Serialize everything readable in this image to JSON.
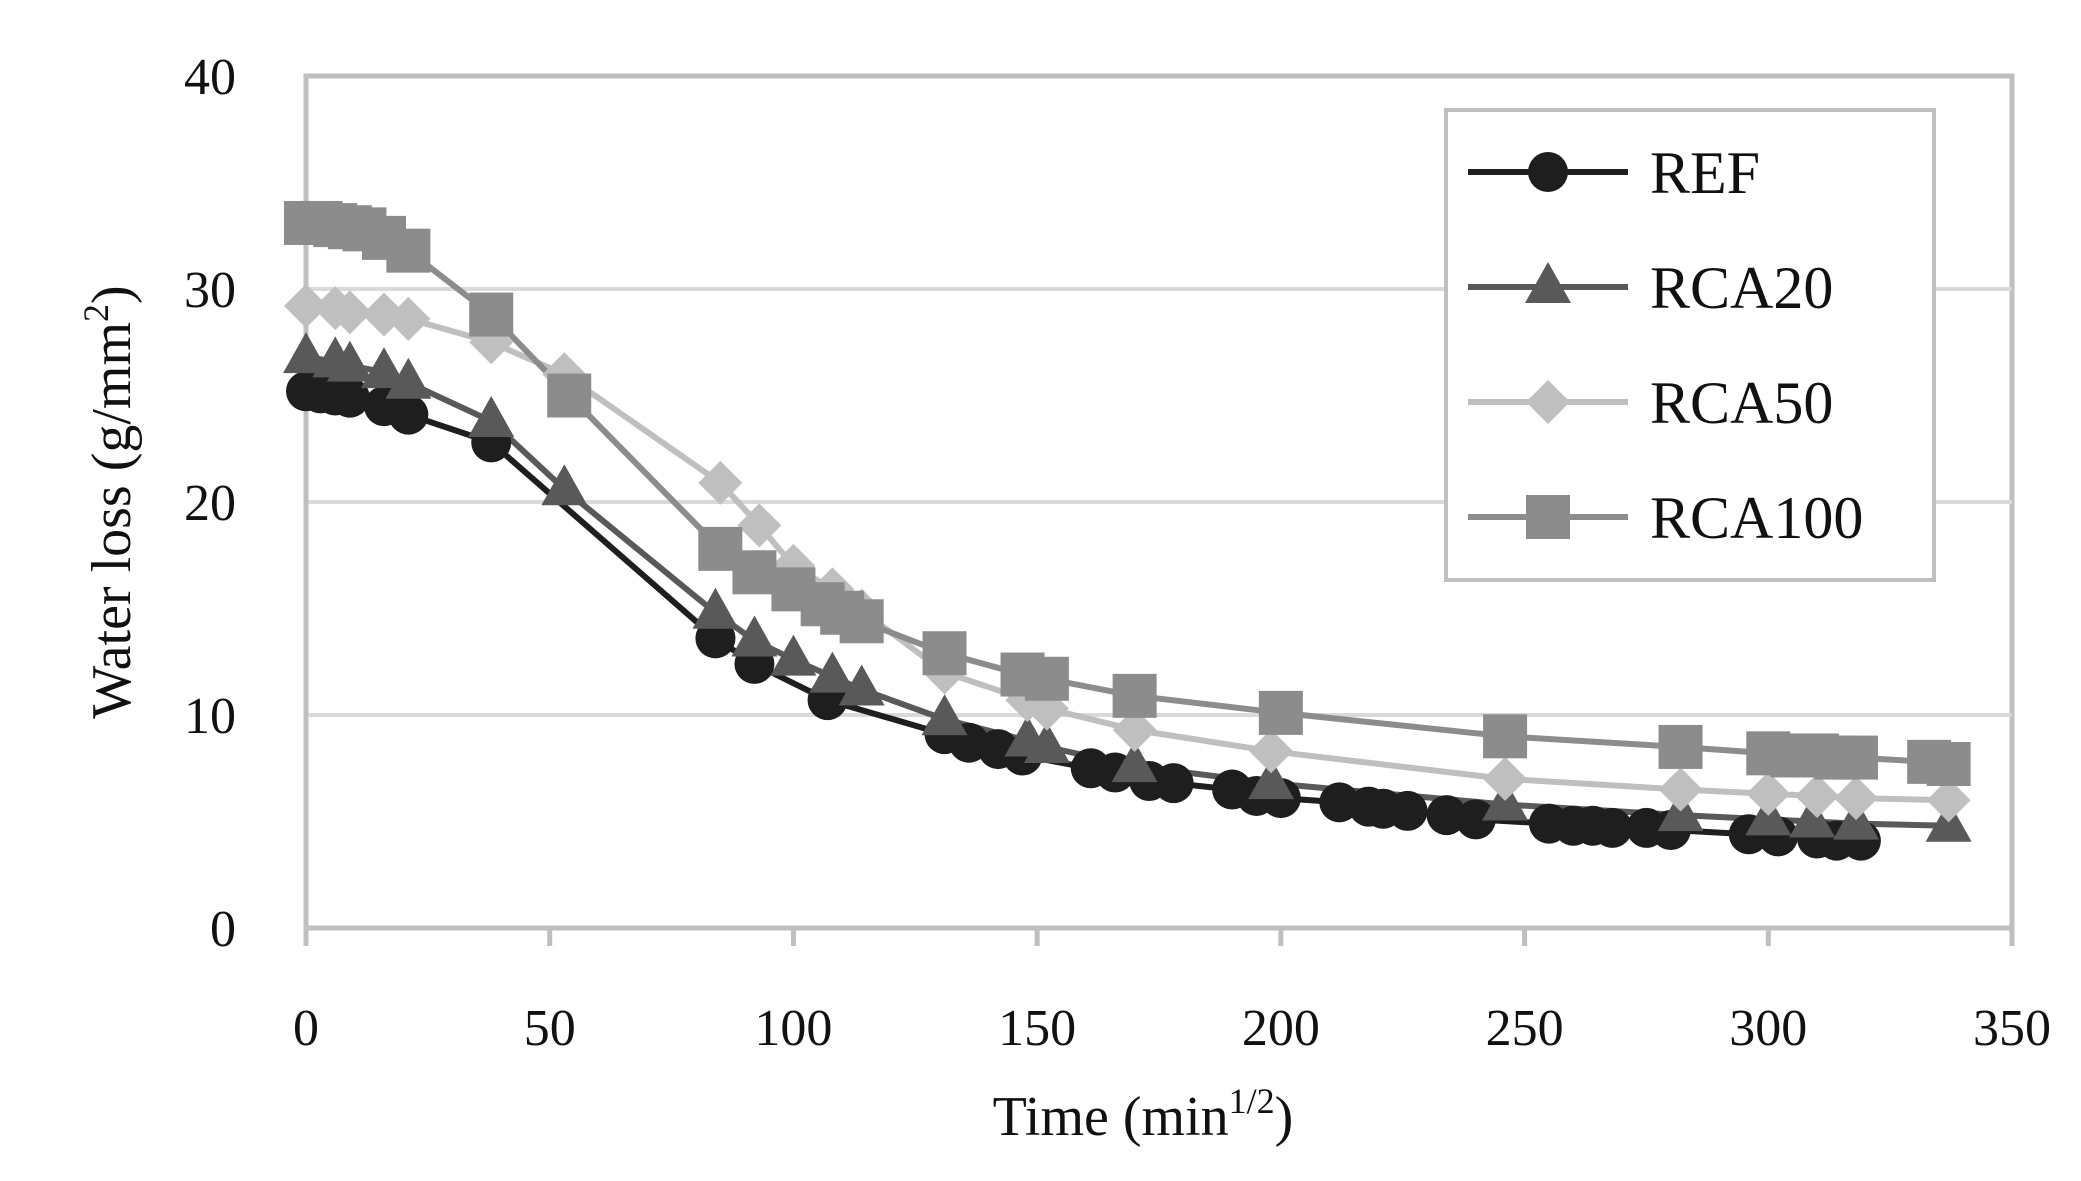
{
  "chart_data": {
    "type": "line",
    "title": "",
    "xlabel": "Time (min",
    "xlabel_sup": "1/2",
    "xlabel_close": ")",
    "ylabel": "Water loss (g/mm",
    "ylabel_sup": "2",
    "ylabel_close": ")",
    "xlim": [
      0,
      350
    ],
    "ylim": [
      0,
      40
    ],
    "xticks": [
      0,
      50,
      100,
      150,
      200,
      250,
      300,
      350
    ],
    "yticks": [
      0,
      10,
      20,
      30,
      40
    ],
    "xtick_labels": [
      "0",
      "50",
      "100",
      "150",
      "200",
      "250",
      "300",
      "350"
    ],
    "ytick_labels": [
      "0",
      "10",
      "20",
      "30",
      "40"
    ],
    "grid": "horizontal",
    "legend_position": "top-right",
    "series": [
      {
        "name": "REF",
        "color": "#1e1e1e",
        "marker": "circle",
        "points": [
          [
            0,
            25.2
          ],
          [
            3,
            25.1
          ],
          [
            6,
            25.0
          ],
          [
            9,
            24.9
          ],
          [
            16,
            24.5
          ],
          [
            21,
            24.1
          ],
          [
            38,
            22.8
          ],
          [
            84,
            13.6
          ],
          [
            92,
            12.4
          ],
          [
            107,
            10.7
          ],
          [
            131,
            9.1
          ],
          [
            136,
            8.7
          ],
          [
            142,
            8.4
          ],
          [
            147,
            8.1
          ],
          [
            161,
            7.5
          ],
          [
            166,
            7.3
          ],
          [
            173,
            6.9
          ],
          [
            178,
            6.8
          ],
          [
            190,
            6.5
          ],
          [
            195,
            6.2
          ],
          [
            200,
            6.1
          ],
          [
            212,
            5.9
          ],
          [
            218,
            5.7
          ],
          [
            221,
            5.6
          ],
          [
            226,
            5.5
          ],
          [
            234,
            5.3
          ],
          [
            240,
            5.1
          ],
          [
            255,
            4.9
          ],
          [
            260,
            4.8
          ],
          [
            264,
            4.8
          ],
          [
            268,
            4.7
          ],
          [
            275,
            4.7
          ],
          [
            280,
            4.6
          ],
          [
            296,
            4.4
          ],
          [
            302,
            4.3
          ],
          [
            310,
            4.2
          ],
          [
            314,
            4.1
          ],
          [
            319,
            4.1
          ]
        ]
      },
      {
        "name": "RCA20",
        "color": "#595959",
        "marker": "triangle",
        "points": [
          [
            0,
            26.8
          ],
          [
            6,
            26.6
          ],
          [
            9,
            26.4
          ],
          [
            16,
            26.1
          ],
          [
            21,
            25.6
          ],
          [
            38,
            23.8
          ],
          [
            53,
            20.6
          ],
          [
            84,
            14.8
          ],
          [
            92,
            13.5
          ],
          [
            100,
            12.6
          ],
          [
            108,
            11.8
          ],
          [
            114,
            11.2
          ],
          [
            131,
            9.8
          ],
          [
            148,
            8.8
          ],
          [
            152,
            8.5
          ],
          [
            170,
            7.6
          ],
          [
            198,
            6.8
          ],
          [
            246,
            5.8
          ],
          [
            282,
            5.3
          ],
          [
            300,
            5.1
          ],
          [
            309,
            5.0
          ],
          [
            318,
            4.9
          ],
          [
            337,
            4.8
          ]
        ]
      },
      {
        "name": "RCA50",
        "color": "#bfbfbf",
        "marker": "diamond",
        "points": [
          [
            0,
            29.2
          ],
          [
            6,
            29.1
          ],
          [
            9,
            28.9
          ],
          [
            16,
            28.8
          ],
          [
            21,
            28.6
          ],
          [
            38,
            27.5
          ],
          [
            53,
            26.0
          ],
          [
            85,
            20.9
          ],
          [
            93,
            18.9
          ],
          [
            100,
            17.0
          ],
          [
            108,
            15.9
          ],
          [
            114,
            14.9
          ],
          [
            131,
            12.0
          ],
          [
            148,
            10.7
          ],
          [
            152,
            10.3
          ],
          [
            170,
            9.3
          ],
          [
            198,
            8.3
          ],
          [
            246,
            7.0
          ],
          [
            282,
            6.5
          ],
          [
            300,
            6.3
          ],
          [
            310,
            6.2
          ],
          [
            318,
            6.1
          ],
          [
            337,
            6.0
          ]
        ]
      },
      {
        "name": "RCA100",
        "color": "#8c8c8c",
        "marker": "square",
        "points": [
          [
            0,
            33.1
          ],
          [
            3,
            33.1
          ],
          [
            6,
            33.0
          ],
          [
            9,
            32.9
          ],
          [
            12,
            32.8
          ],
          [
            16,
            32.4
          ],
          [
            21,
            31.8
          ],
          [
            38,
            28.8
          ],
          [
            54,
            25.0
          ],
          [
            85,
            17.8
          ],
          [
            92,
            16.7
          ],
          [
            100,
            15.9
          ],
          [
            106,
            15.2
          ],
          [
            110,
            14.8
          ],
          [
            114,
            14.4
          ],
          [
            131,
            12.9
          ],
          [
            147,
            11.9
          ],
          [
            152,
            11.7
          ],
          [
            170,
            10.9
          ],
          [
            200,
            10.1
          ],
          [
            246,
            9.0
          ],
          [
            282,
            8.5
          ],
          [
            300,
            8.2
          ],
          [
            305,
            8.1
          ],
          [
            310,
            8.1
          ],
          [
            314,
            8.0
          ],
          [
            318,
            8.0
          ],
          [
            333,
            7.8
          ],
          [
            337,
            7.7
          ]
        ]
      }
    ]
  }
}
